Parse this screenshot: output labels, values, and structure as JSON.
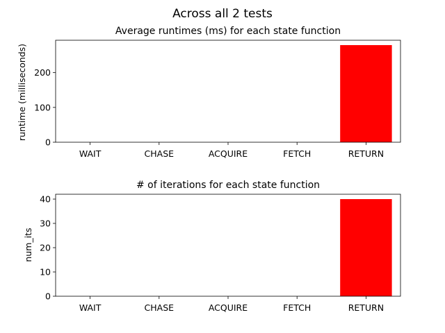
{
  "figure": {
    "suptitle": "Across all 2 tests"
  },
  "chart_data": [
    {
      "type": "bar",
      "title": "Average runtimes (ms) for each state function",
      "xlabel": "",
      "ylabel": "runtime (milliseconds)",
      "categories": [
        "WAIT",
        "CHASE",
        "ACQUIRE",
        "FETCH",
        "RETURN"
      ],
      "values": [
        0,
        0,
        0,
        0,
        279
      ],
      "ylim": [
        0,
        293
      ],
      "yticks": [
        0,
        100,
        200
      ],
      "bar_color": "#ff0000",
      "grid": false
    },
    {
      "type": "bar",
      "title": "# of iterations for each state function",
      "xlabel": "",
      "ylabel": "num_its",
      "categories": [
        "WAIT",
        "CHASE",
        "ACQUIRE",
        "FETCH",
        "RETURN"
      ],
      "values": [
        0,
        0,
        0,
        0,
        40
      ],
      "ylim": [
        0,
        42
      ],
      "yticks": [
        0,
        10,
        20,
        30,
        40
      ],
      "bar_color": "#ff0000",
      "grid": false
    }
  ]
}
